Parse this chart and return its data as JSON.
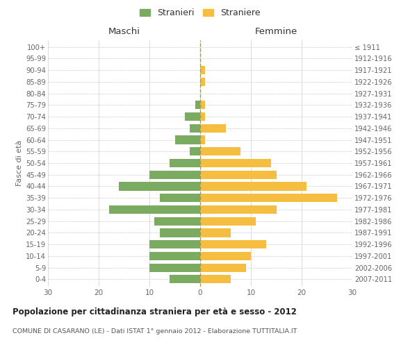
{
  "age_groups": [
    "0-4",
    "5-9",
    "10-14",
    "15-19",
    "20-24",
    "25-29",
    "30-34",
    "35-39",
    "40-44",
    "45-49",
    "50-54",
    "55-59",
    "60-64",
    "65-69",
    "70-74",
    "75-79",
    "80-84",
    "85-89",
    "90-94",
    "95-99",
    "100+"
  ],
  "birth_years": [
    "2007-2011",
    "2002-2006",
    "1997-2001",
    "1992-1996",
    "1987-1991",
    "1982-1986",
    "1977-1981",
    "1972-1976",
    "1967-1971",
    "1962-1966",
    "1957-1961",
    "1952-1956",
    "1947-1951",
    "1942-1946",
    "1937-1941",
    "1932-1936",
    "1927-1931",
    "1922-1926",
    "1917-1921",
    "1912-1916",
    "≤ 1911"
  ],
  "maschi": [
    6,
    10,
    10,
    10,
    8,
    9,
    18,
    8,
    16,
    10,
    6,
    2,
    5,
    2,
    3,
    1,
    0,
    0,
    0,
    0,
    0
  ],
  "femmine": [
    6,
    9,
    10,
    13,
    6,
    11,
    15,
    27,
    21,
    15,
    14,
    8,
    1,
    5,
    1,
    1,
    0,
    1,
    1,
    0,
    0
  ],
  "color_maschi": "#7aab60",
  "color_femmine": "#f5be41",
  "title": "Popolazione per cittadinanza straniera per età e sesso - 2012",
  "subtitle": "COMUNE DI CASARANO (LE) - Dati ISTAT 1° gennaio 2012 - Elaborazione TUTTITALIA.IT",
  "ylabel_left": "Fasce di età",
  "xlabel_maschi": "Maschi",
  "xlabel_femmine": "Femmine",
  "legend_maschi": "Stranieri",
  "legend_femmine": "Straniere",
  "xlim": 30,
  "background_color": "#ffffff",
  "grid_color": "#cccccc"
}
